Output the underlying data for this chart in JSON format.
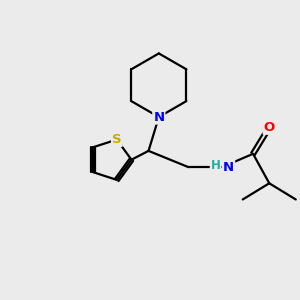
{
  "background_color": "#ebebeb",
  "atom_colors": {
    "C": "#000000",
    "N": "#0000ff",
    "O": "#ff0000",
    "S": "#ccaa00",
    "H": "#20b0a0"
  },
  "bond_color": "#000000",
  "bond_width": 1.6,
  "figsize": [
    3.0,
    3.0
  ],
  "dpi": 100,
  "xlim": [
    0,
    10
  ],
  "ylim": [
    0,
    10
  ]
}
